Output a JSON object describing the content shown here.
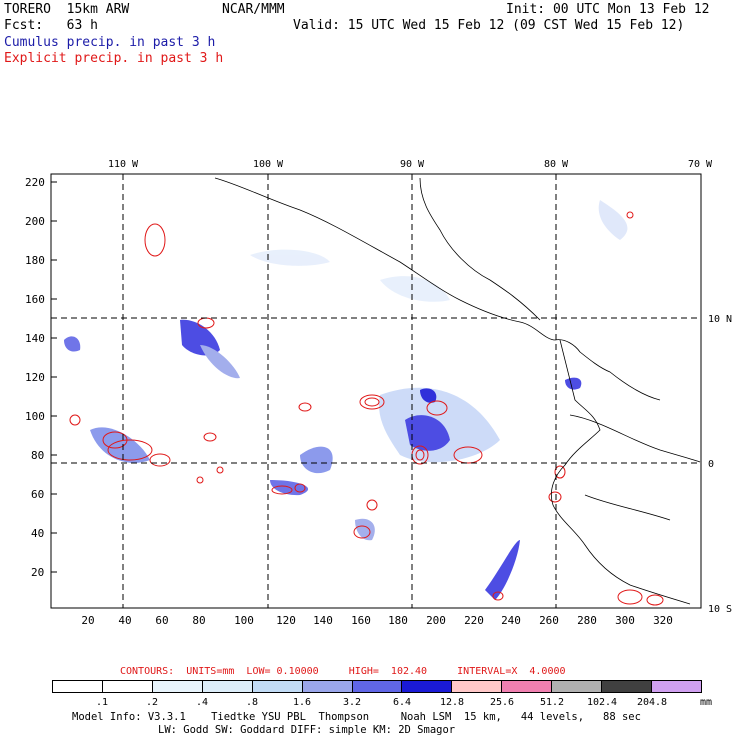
{
  "header": {
    "model": "TORERO  15km ARW",
    "org": "NCAR/MMM",
    "init": "Init: 00 UTC Mon 13 Feb 12",
    "fcst": "Fcst:   63 h",
    "valid": "Valid: 15 UTC Wed 15 Feb 12 (09 CST Wed 15 Feb 12)",
    "cumulus": "Cumulus precip. in past 3 h",
    "explicit": "Explicit precip. in past 3 h"
  },
  "map": {
    "lon_labels": [
      "110 W",
      "100 W",
      "90 W",
      "80 W",
      "70 W"
    ],
    "lat_labels": [
      "10 N",
      "0",
      "10 S"
    ],
    "y_ticks": [
      "220",
      "200",
      "180",
      "160",
      "140",
      "120",
      "100",
      "80",
      "60",
      "40",
      "20"
    ],
    "x_ticks": [
      "20",
      "40",
      "60",
      "80",
      "100",
      "120",
      "140",
      "160",
      "180",
      "200",
      "220",
      "240",
      "260",
      "280",
      "300",
      "320"
    ]
  },
  "contours_line": "CONTOURS:  UNITS=mm  LOW= 0.10000     HIGH=  102.40     INTERVAL=X  4.0000",
  "legend": {
    "labels": [
      ".1",
      ".2",
      ".4",
      ".8",
      "1.6",
      "3.2",
      "6.4",
      "12.8",
      "25.6",
      "51.2",
      "102.4",
      "204.8"
    ],
    "unit": "mm",
    "colors": [
      "#ffffff",
      "#ffffff",
      "#e8f4fc",
      "#ddeefa",
      "#c2dcf6",
      "#9aa6ea",
      "#6066e6",
      "#1a1ad6",
      "#ffc8c8",
      "#f080b0",
      "#b0b0b0",
      "#404040",
      "#d0a0f0"
    ]
  },
  "footer": {
    "line1": "Model Info: V3.3.1    Tiedtke YSU PBL  Thompson     Noah LSM  15 km,   44 levels,   88 sec",
    "line2": "LW: Godd SW: Goddard DIFF: simple KM: 2D Smagor"
  }
}
